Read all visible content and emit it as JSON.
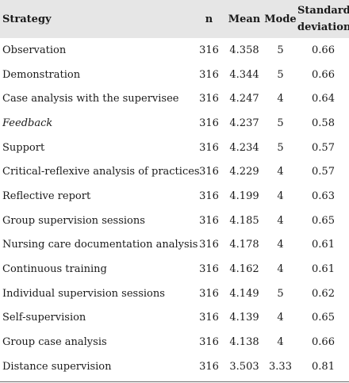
{
  "table": {
    "headers": {
      "strategy": "Strategy",
      "n": "n",
      "mean": "Mean",
      "mode": "Mode",
      "sd_line1": "Standard",
      "sd_line2": "deviation"
    },
    "rows": [
      {
        "strategy": "Observation",
        "n": "316",
        "mean": "4.358",
        "mode": "5",
        "sd": "0.66",
        "italic": false
      },
      {
        "strategy": "Demonstration",
        "n": "316",
        "mean": "4.344",
        "mode": "5",
        "sd": "0.66",
        "italic": false
      },
      {
        "strategy": "Case analysis with the supervisee",
        "n": "316",
        "mean": "4.247",
        "mode": "4",
        "sd": "0.64",
        "italic": false
      },
      {
        "strategy": "Feedback",
        "n": "316",
        "mean": "4.237",
        "mode": "5",
        "sd": "0.58",
        "italic": true
      },
      {
        "strategy": "Support",
        "n": "316",
        "mean": "4.234",
        "mode": "5",
        "sd": "0.57",
        "italic": false
      },
      {
        "strategy": "Critical-reflexive analysis of practices",
        "n": "316",
        "mean": "4.229",
        "mode": "4",
        "sd": "0.57",
        "italic": false
      },
      {
        "strategy": "Reflective report",
        "n": "316",
        "mean": "4.199",
        "mode": "4",
        "sd": "0.63",
        "italic": false
      },
      {
        "strategy": "Group supervision sessions",
        "n": "316",
        "mean": "4.185",
        "mode": "4",
        "sd": "0.65",
        "italic": false
      },
      {
        "strategy": "Nursing care documentation analysis",
        "n": "316",
        "mean": "4.178",
        "mode": "4",
        "sd": "0.61",
        "italic": false
      },
      {
        "strategy": "Continuous training",
        "n": "316",
        "mean": "4.162",
        "mode": "4",
        "sd": "0.61",
        "italic": false
      },
      {
        "strategy": "Individual supervision sessions",
        "n": "316",
        "mean": "4.149",
        "mode": "5",
        "sd": "0.62",
        "italic": false
      },
      {
        "strategy": "Self-supervision",
        "n": "316",
        "mean": "4.139",
        "mode": "4",
        "sd": "0.65",
        "italic": false
      },
      {
        "strategy": "Group case analysis",
        "n": "316",
        "mean": "4.138",
        "mode": "4",
        "sd": "0.66",
        "italic": false
      },
      {
        "strategy": "Distance supervision",
        "n": "316",
        "mean": "3.503",
        "mode": "3.33",
        "sd": "0.81",
        "italic": false
      }
    ]
  }
}
